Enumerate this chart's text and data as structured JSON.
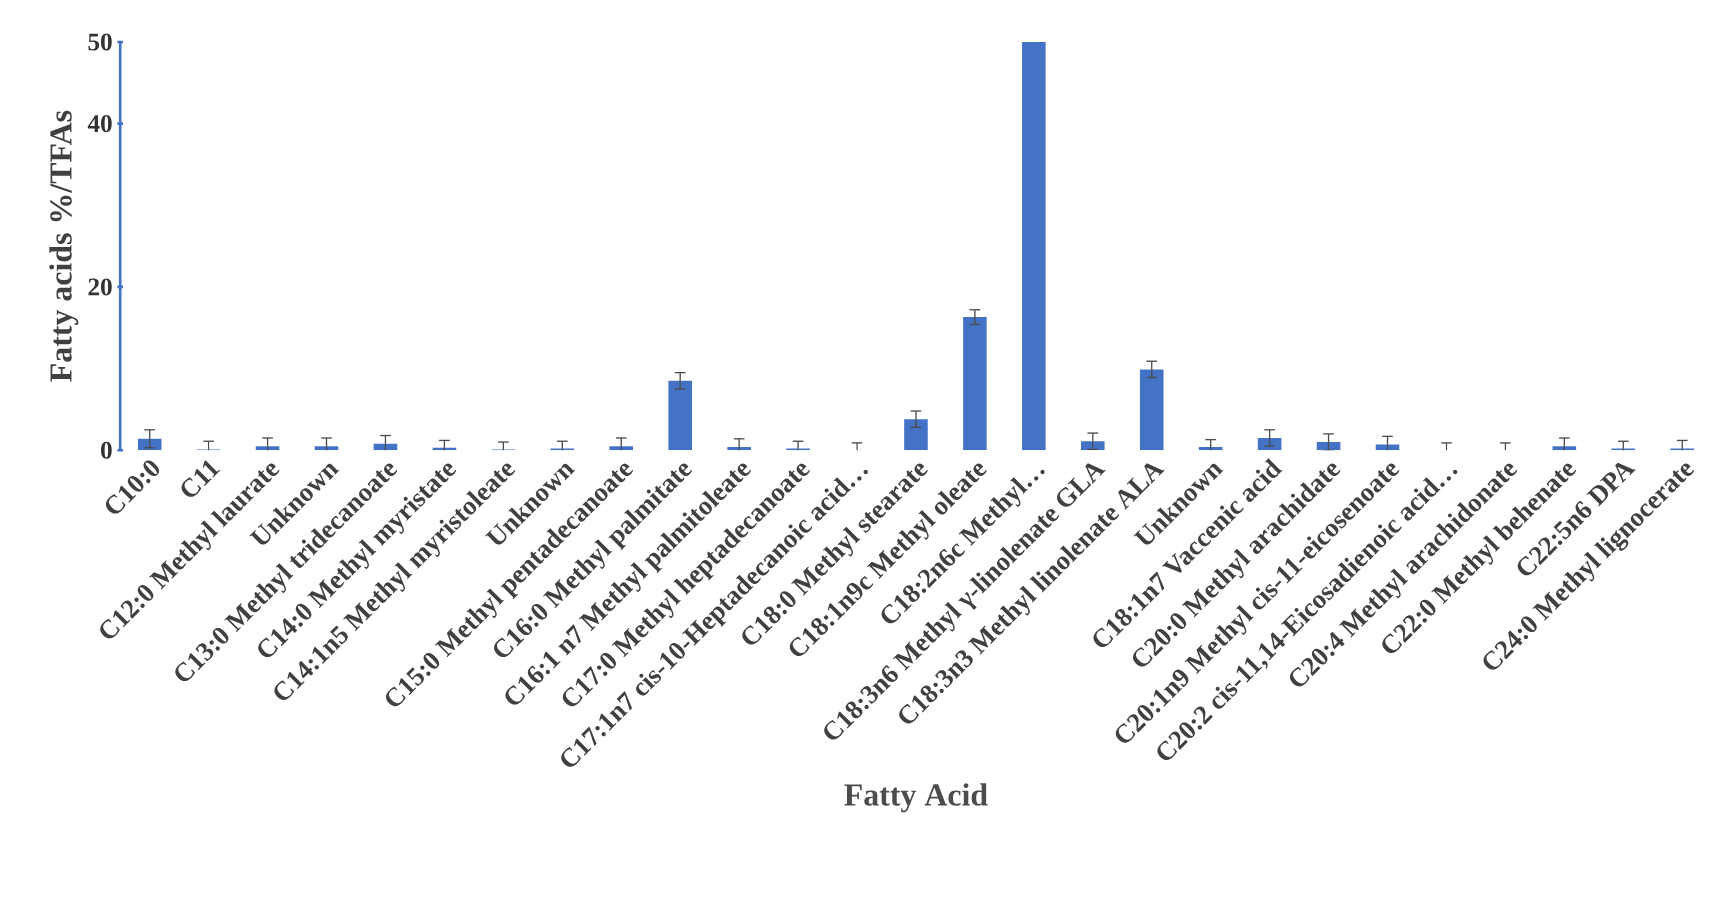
{
  "chart_data": {
    "type": "bar",
    "xlabel": "Fatty Acid",
    "ylabel": "Fatty acids  %/TFAs",
    "categories": [
      "C10:0",
      "C11",
      "C12:0 Methyl laurate",
      "Unknown",
      "C13:0 Methyl tridecanoate",
      "C14:0 Methyl myristate",
      "C14:1n5  Methyl myristoleate",
      "Unknown",
      "C15:0 Methyl pentadecanoate",
      "C16:0 Methyl palmitate",
      "C16:1 n7 Methyl palmitoleate",
      "C17:0 Methyl heptadecanoate",
      "C17:1n7 cis-10-Heptadecanoic acid…",
      "C18:0 Methyl stearate",
      "C18:1n9c Methyl oleate",
      "C18:2n6c Methyl…",
      "C18:3n6 Methyl γ-linolenate GLA",
      "C18:3n3 Methyl linolenate ALA",
      "Unknown",
      "C18:1n7 Vaccenic acid",
      "C20:0 Methyl arachidate",
      "C20:1n9 Methyl cis-11-eicosenoate",
      "C20:2 cis-11,14-Eicosadienoic acid…",
      "C20:4 Methyl arachidonate",
      "C22:0 Methyl behenate",
      "C22:5n6 DPA",
      "C24:0 Methyl lignocerate"
    ],
    "values": [
      1.4,
      0.1,
      0.5,
      0.5,
      0.8,
      0.3,
      0.1,
      0.2,
      0.5,
      8.5,
      0.4,
      0.2,
      0,
      3.8,
      16.3,
      50,
      1.1,
      9.9,
      0.4,
      1.5,
      1.0,
      0.7,
      0,
      0,
      0.5,
      0.2,
      0.2
    ],
    "errors": [
      1.1,
      1.0,
      1.0,
      1.0,
      1.0,
      0.9,
      0.9,
      0.9,
      1.0,
      1.0,
      1.0,
      0.9,
      0.9,
      1.0,
      0.9,
      null,
      1.0,
      1.0,
      0.9,
      1.0,
      1.0,
      1.0,
      0.9,
      0.9,
      1.0,
      0.9,
      1.0
    ],
    "color": "#4472c4",
    "ylim": [
      0,
      50
    ],
    "yticks": [
      0,
      20,
      40,
      50
    ],
    "grid": false
  }
}
